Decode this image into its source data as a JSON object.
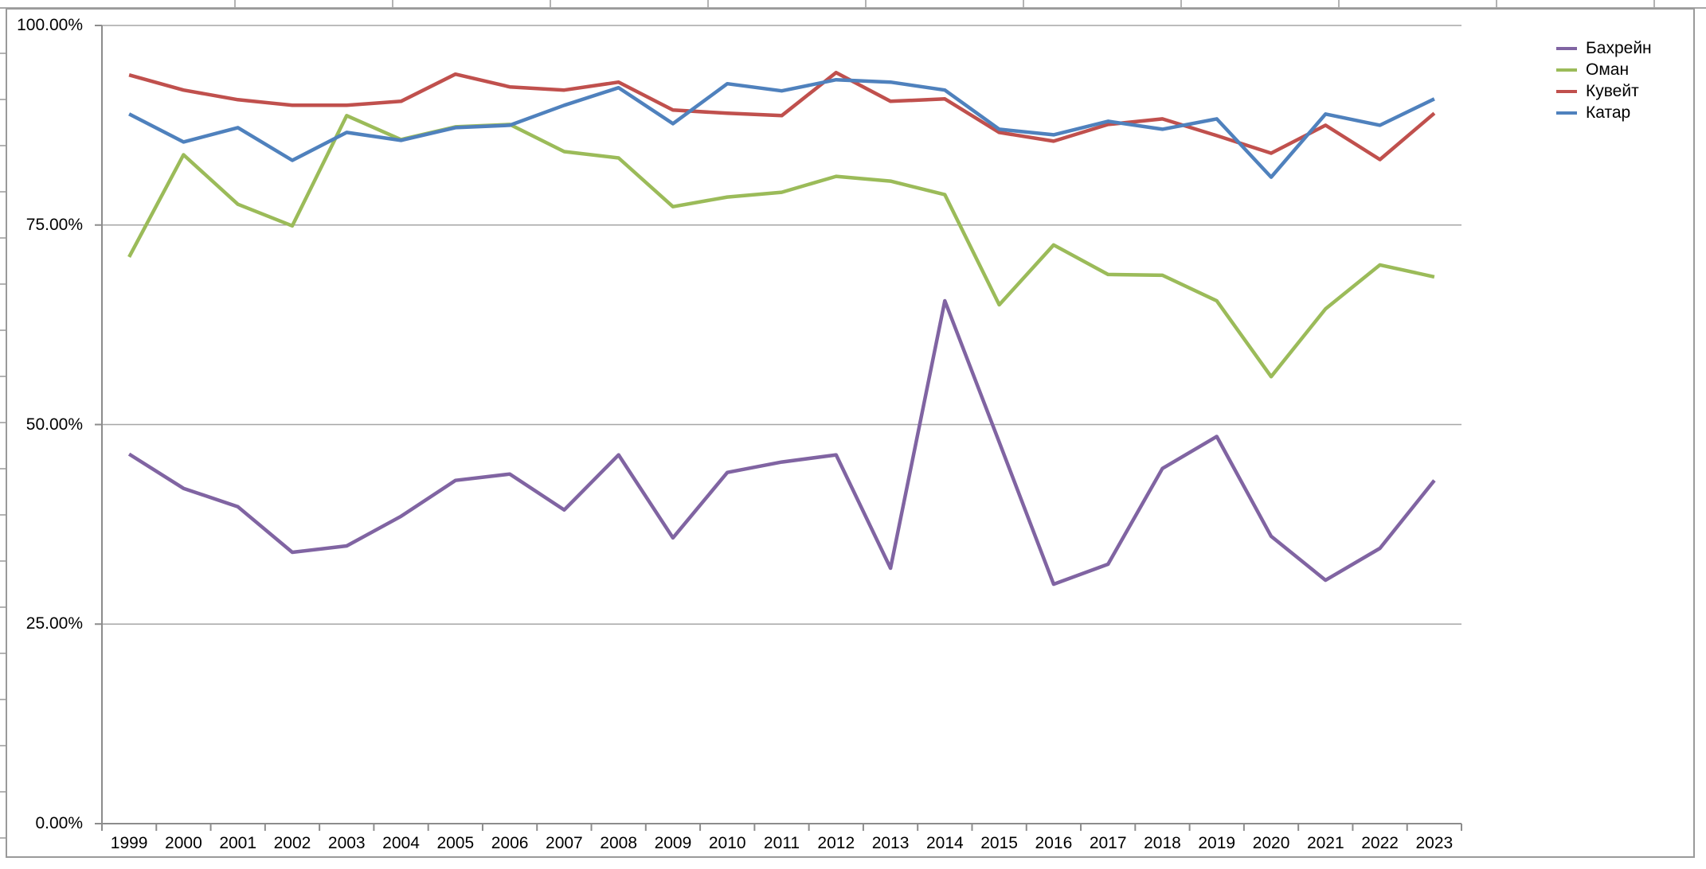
{
  "chart_data": {
    "type": "line",
    "title": "",
    "categories": [
      "1999",
      "2000",
      "2001",
      "2002",
      "2003",
      "2004",
      "2005",
      "2006",
      "2007",
      "2008",
      "2009",
      "2010",
      "2011",
      "2012",
      "2013",
      "2014",
      "2015",
      "2016",
      "2017",
      "2018",
      "2019",
      "2020",
      "2021",
      "2022",
      "2023"
    ],
    "series": [
      {
        "name": "Бахрейн",
        "color": "#8064A2",
        "values": [
          46.3,
          42.0,
          39.7,
          34.0,
          34.8,
          38.5,
          43.0,
          43.8,
          39.3,
          46.2,
          35.8,
          44.0,
          45.3,
          46.2,
          32.0,
          65.5,
          47.8,
          30.0,
          32.5,
          44.5,
          48.5,
          36.0,
          30.5,
          34.5,
          43.0
        ]
      },
      {
        "name": "Оман",
        "color": "#9BBB59",
        "values": [
          71.0,
          83.8,
          77.6,
          74.9,
          88.7,
          85.7,
          87.3,
          87.6,
          84.2,
          83.4,
          77.3,
          78.5,
          79.1,
          81.1,
          80.5,
          78.8,
          65.0,
          72.5,
          68.8,
          68.7,
          65.5,
          56.0,
          64.5,
          70.0,
          68.5
        ]
      },
      {
        "name": "Кувейт",
        "color": "#C0504D",
        "values": [
          93.8,
          91.9,
          90.7,
          90.0,
          90.0,
          90.5,
          93.9,
          92.3,
          91.9,
          92.9,
          89.4,
          89.0,
          88.7,
          94.1,
          90.5,
          90.8,
          86.6,
          85.5,
          87.6,
          88.3,
          86.2,
          84.0,
          87.5,
          83.2,
          89.0
        ]
      },
      {
        "name": "Катар",
        "color": "#4F81BD",
        "values": [
          88.9,
          85.4,
          87.2,
          83.1,
          86.6,
          85.6,
          87.2,
          87.5,
          90.0,
          92.2,
          87.7,
          92.7,
          91.8,
          93.2,
          92.9,
          91.9,
          87.0,
          86.3,
          88.0,
          87.0,
          88.3,
          81.0,
          88.9,
          87.5,
          90.8
        ]
      }
    ],
    "y_axis": {
      "min": 0,
      "max": 100,
      "format": "percent",
      "ticks": [
        {
          "label": "100.00%",
          "value": 100
        },
        {
          "label": "75.00%",
          "value": 75
        },
        {
          "label": "50.00%",
          "value": 50
        },
        {
          "label": "25.00%",
          "value": 25
        },
        {
          "label": "0.00%",
          "value": 0
        }
      ]
    },
    "x_axis": {
      "label": ""
    },
    "grid": true,
    "legend_position": "top-right",
    "colors": {
      "gridline": "#a6a6a6",
      "axis": "#8c8c8c",
      "chart_border": "#9a9a9a",
      "background": "#ffffff"
    }
  }
}
